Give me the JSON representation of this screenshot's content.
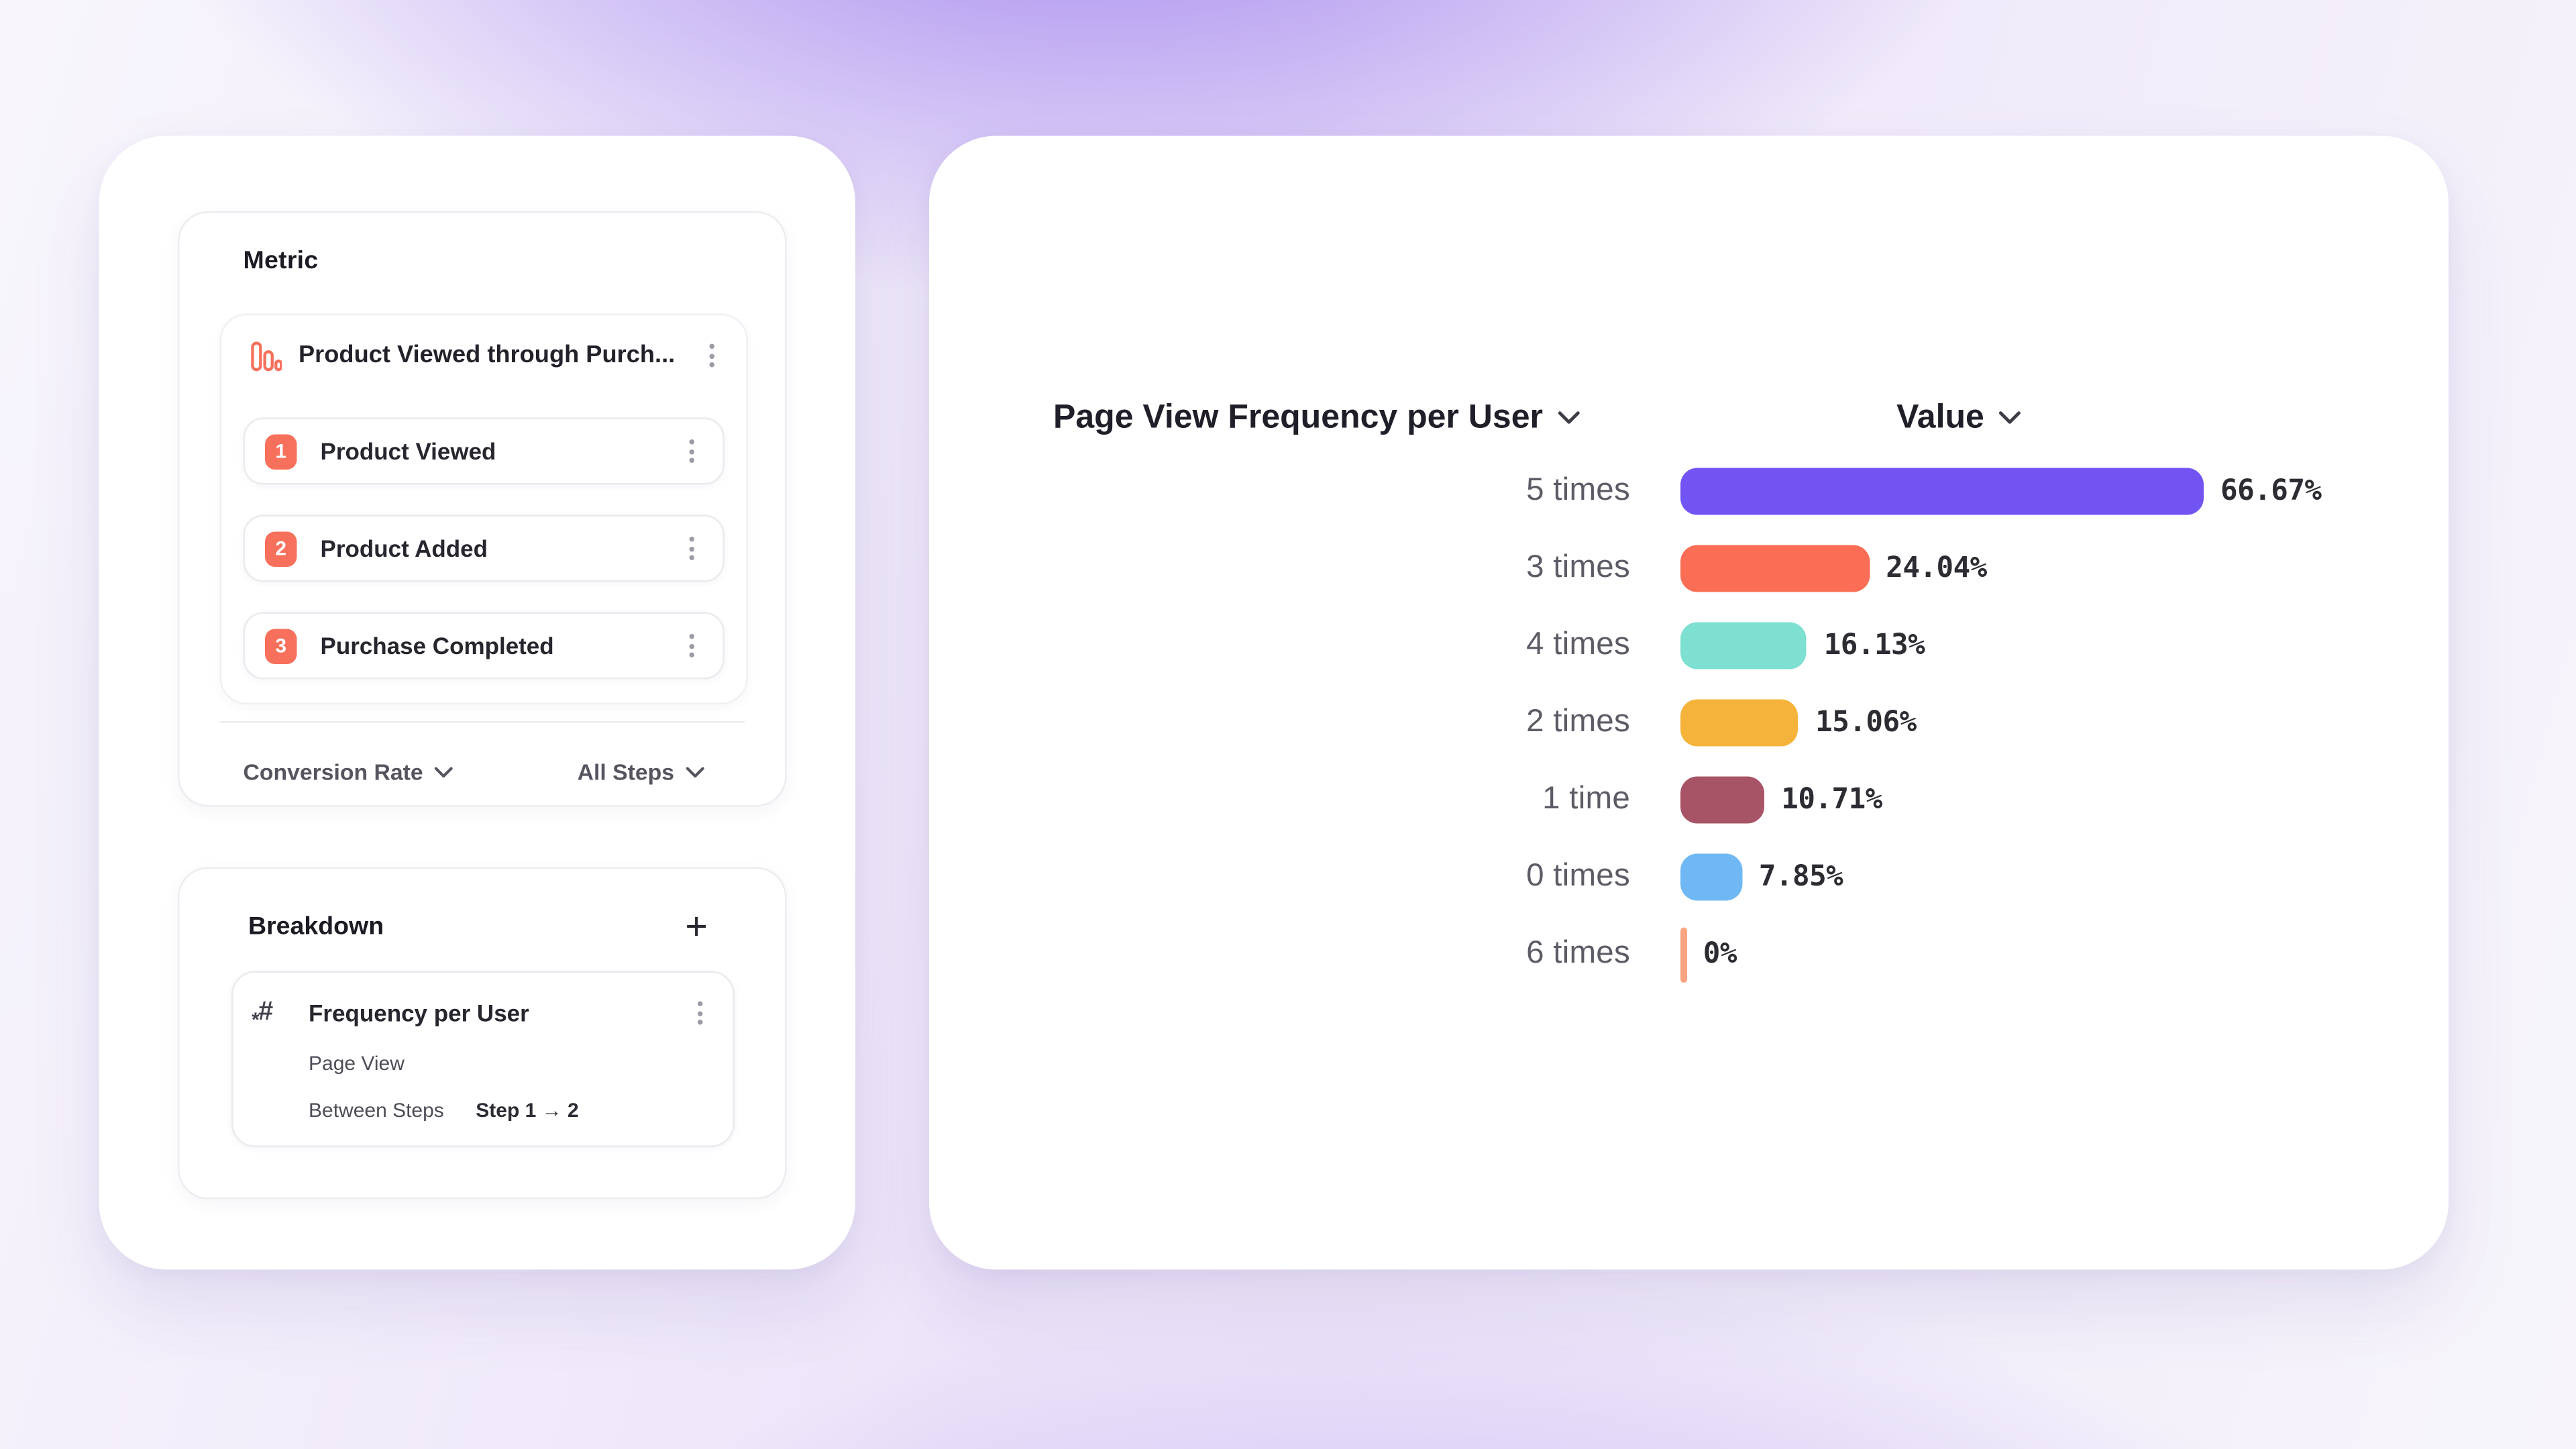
{
  "colors": {
    "accent_orange": "#F7705B",
    "background_purple": "#A78CEF",
    "text_dark": "#1F1F29",
    "label_gray": "#5C5C66"
  },
  "metric_panel": {
    "title": "Metric",
    "funnel": {
      "title": "Product Viewed through Purch...",
      "icon": "funnel-bar-chart",
      "steps": [
        {
          "index": "1",
          "label": "Product Viewed"
        },
        {
          "index": "2",
          "label": "Product Added"
        },
        {
          "index": "3",
          "label": "Purchase Completed"
        }
      ]
    },
    "conversion_dropdown": "Conversion Rate",
    "steps_dropdown": "All Steps"
  },
  "breakdown_panel": {
    "title": "Breakdown",
    "add_label": "+",
    "item": {
      "icon_hash": "#",
      "icon_asterisk": "*",
      "title": "Frequency per User",
      "event": "Page View",
      "between_label": "Between Steps",
      "range": "Step 1 → 2"
    }
  },
  "chart": {
    "header": "Page View Frequency per User",
    "value_header": "Value"
  },
  "chart_data": {
    "type": "bar",
    "orientation": "horizontal",
    "title": "Page View Frequency per User",
    "value_column": "Value",
    "categories": [
      "5 times",
      "3 times",
      "4 times",
      "2 times",
      "1 time",
      "0 times",
      "6 times"
    ],
    "values": [
      66.67,
      24.04,
      16.13,
      15.06,
      10.71,
      7.85,
      0
    ],
    "labels": [
      "66.67%",
      "24.04%",
      "16.13%",
      "15.06%",
      "10.71%",
      "7.85%",
      "0%"
    ],
    "colors": [
      "#7254F3",
      "#FA6E55",
      "#7DE0D0",
      "#F5B33C",
      "#A85467",
      "#6FB8F3",
      "#F9A482"
    ],
    "xlim": [
      0,
      66.67
    ],
    "grid": false,
    "legend": false
  }
}
